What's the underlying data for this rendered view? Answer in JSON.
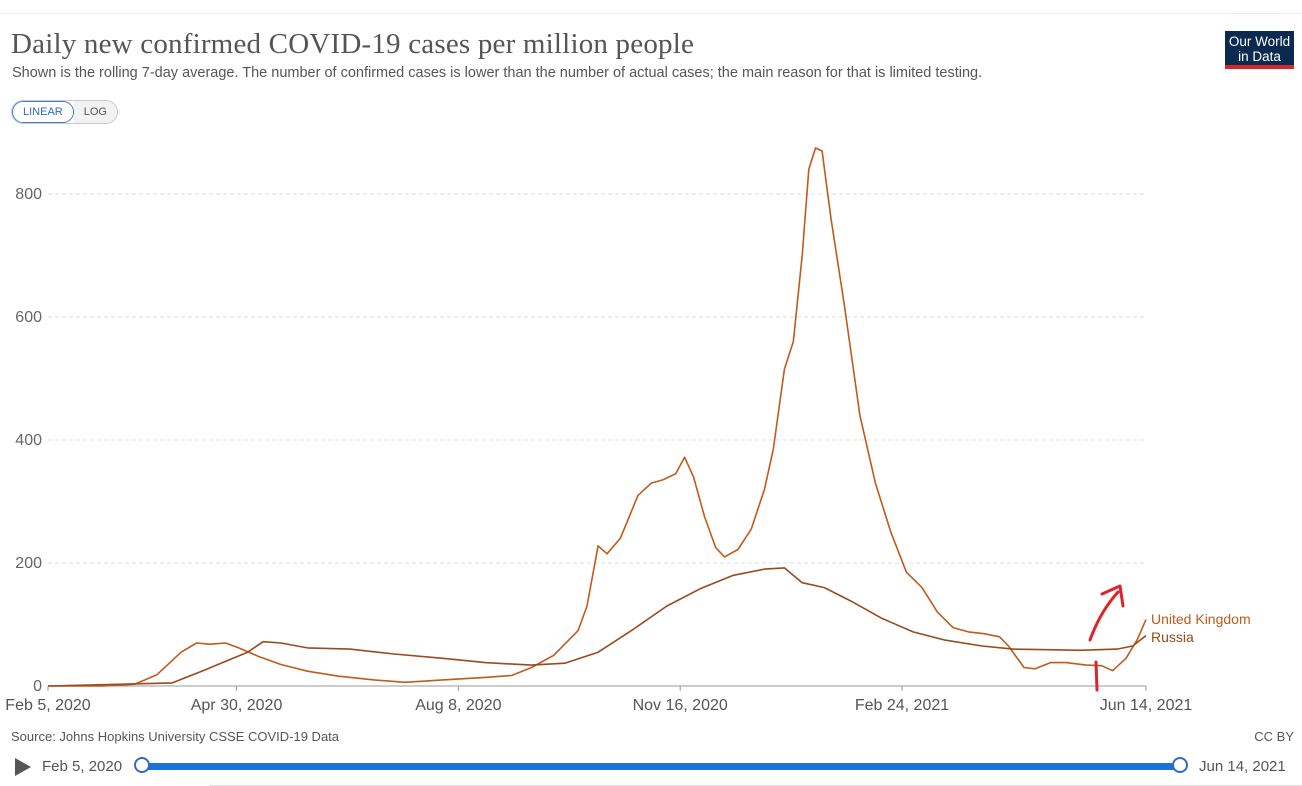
{
  "header": {
    "title": "Daily new confirmed COVID-19 cases per million people",
    "subtitle": "Shown is the rolling 7-day average. The number of confirmed cases is lower than the number of actual cases; the main reason for that is limited testing.",
    "logo_line1": "Our World",
    "logo_line2": "in Data"
  },
  "scale_toggle": {
    "linear": "LINEAR",
    "log": "LOG",
    "selected": "linear"
  },
  "footer": {
    "source": "Source: Johns Hopkins University CSSE COVID-19 Data",
    "license": "CC BY"
  },
  "timeline": {
    "start_label": "Feb 5, 2020",
    "end_label": "Jun 14, 2021"
  },
  "colors": {
    "uk": "#c15a1d",
    "russia": "#9a4a1e",
    "annotation": "#e0232b",
    "grid": "#dddddd"
  },
  "chart_data": {
    "type": "line",
    "title": "Daily new confirmed COVID-19 cases per million people",
    "y_ticks": [
      0,
      200,
      400,
      600,
      800
    ],
    "x_ticks": [
      "Feb 5, 2020",
      "Apr 30, 2020",
      "Aug 8, 2020",
      "Nov 16, 2020",
      "Feb 24, 2021",
      "Jun 14, 2021"
    ],
    "ylim": [
      0,
      880
    ],
    "grid": true,
    "legend": "right-end labels",
    "series": [
      {
        "name": "United Kingdom",
        "color": "#c15a1d",
        "points": [
          [
            "2020-02-05",
            0
          ],
          [
            "2020-03-01",
            0
          ],
          [
            "2020-03-15",
            3
          ],
          [
            "2020-03-25",
            18
          ],
          [
            "2020-04-05",
            55
          ],
          [
            "2020-04-12",
            70
          ],
          [
            "2020-04-18",
            68
          ],
          [
            "2020-04-25",
            70
          ],
          [
            "2020-05-01",
            62
          ],
          [
            "2020-05-10",
            48
          ],
          [
            "2020-05-20",
            35
          ],
          [
            "2020-06-01",
            24
          ],
          [
            "2020-06-15",
            16
          ],
          [
            "2020-07-01",
            10
          ],
          [
            "2020-07-15",
            6
          ],
          [
            "2020-08-01",
            10
          ],
          [
            "2020-08-20",
            14
          ],
          [
            "2020-09-01",
            17
          ],
          [
            "2020-09-10",
            30
          ],
          [
            "2020-09-20",
            50
          ],
          [
            "2020-10-01",
            90
          ],
          [
            "2020-10-05",
            130
          ],
          [
            "2020-10-10",
            228
          ],
          [
            "2020-10-14",
            215
          ],
          [
            "2020-10-20",
            240
          ],
          [
            "2020-10-28",
            310
          ],
          [
            "2020-11-03",
            330
          ],
          [
            "2020-11-08",
            335
          ],
          [
            "2020-11-14",
            345
          ],
          [
            "2020-11-18",
            372
          ],
          [
            "2020-11-22",
            340
          ],
          [
            "2020-11-27",
            275
          ],
          [
            "2020-12-02",
            225
          ],
          [
            "2020-12-06",
            210
          ],
          [
            "2020-12-12",
            222
          ],
          [
            "2020-12-18",
            255
          ],
          [
            "2020-12-24",
            320
          ],
          [
            "2020-12-28",
            385
          ],
          [
            "2021-01-02",
            515
          ],
          [
            "2021-01-06",
            560
          ],
          [
            "2021-01-10",
            700
          ],
          [
            "2021-01-13",
            840
          ],
          [
            "2021-01-16",
            875
          ],
          [
            "2021-01-19",
            870
          ],
          [
            "2021-01-23",
            760
          ],
          [
            "2021-01-29",
            620
          ],
          [
            "2021-02-05",
            440
          ],
          [
            "2021-02-12",
            330
          ],
          [
            "2021-02-19",
            250
          ],
          [
            "2021-02-26",
            185
          ],
          [
            "2021-03-05",
            160
          ],
          [
            "2021-03-12",
            120
          ],
          [
            "2021-03-19",
            95
          ],
          [
            "2021-03-26",
            88
          ],
          [
            "2021-04-02",
            85
          ],
          [
            "2021-04-09",
            80
          ],
          [
            "2021-04-13",
            65
          ],
          [
            "2021-04-20",
            30
          ],
          [
            "2021-04-25",
            28
          ],
          [
            "2021-05-02",
            38
          ],
          [
            "2021-05-09",
            38
          ],
          [
            "2021-05-18",
            34
          ],
          [
            "2021-05-25",
            33
          ],
          [
            "2021-05-30",
            25
          ],
          [
            "2021-06-05",
            45
          ],
          [
            "2021-06-10",
            75
          ],
          [
            "2021-06-14",
            108
          ]
        ]
      },
      {
        "name": "Russia",
        "color": "#9a4a1e",
        "points": [
          [
            "2020-02-05",
            0
          ],
          [
            "2020-04-01",
            5
          ],
          [
            "2020-04-15",
            25
          ],
          [
            "2020-04-25",
            40
          ],
          [
            "2020-05-05",
            55
          ],
          [
            "2020-05-12",
            72
          ],
          [
            "2020-05-20",
            70
          ],
          [
            "2020-06-01",
            62
          ],
          [
            "2020-06-20",
            60
          ],
          [
            "2020-07-10",
            52
          ],
          [
            "2020-08-01",
            45
          ],
          [
            "2020-08-20",
            38
          ],
          [
            "2020-09-10",
            34
          ],
          [
            "2020-09-25",
            37
          ],
          [
            "2020-10-10",
            55
          ],
          [
            "2020-10-25",
            90
          ],
          [
            "2020-11-10",
            130
          ],
          [
            "2020-11-25",
            158
          ],
          [
            "2020-12-10",
            180
          ],
          [
            "2020-12-24",
            190
          ],
          [
            "2021-01-02",
            192
          ],
          [
            "2021-01-10",
            168
          ],
          [
            "2021-01-20",
            160
          ],
          [
            "2021-02-01",
            138
          ],
          [
            "2021-02-15",
            110
          ],
          [
            "2021-03-01",
            88
          ],
          [
            "2021-03-15",
            75
          ],
          [
            "2021-04-01",
            65
          ],
          [
            "2021-04-15",
            60
          ],
          [
            "2021-05-01",
            59
          ],
          [
            "2021-05-15",
            58
          ],
          [
            "2021-06-01",
            60
          ],
          [
            "2021-06-08",
            65
          ],
          [
            "2021-06-14",
            82
          ]
        ]
      }
    ]
  }
}
